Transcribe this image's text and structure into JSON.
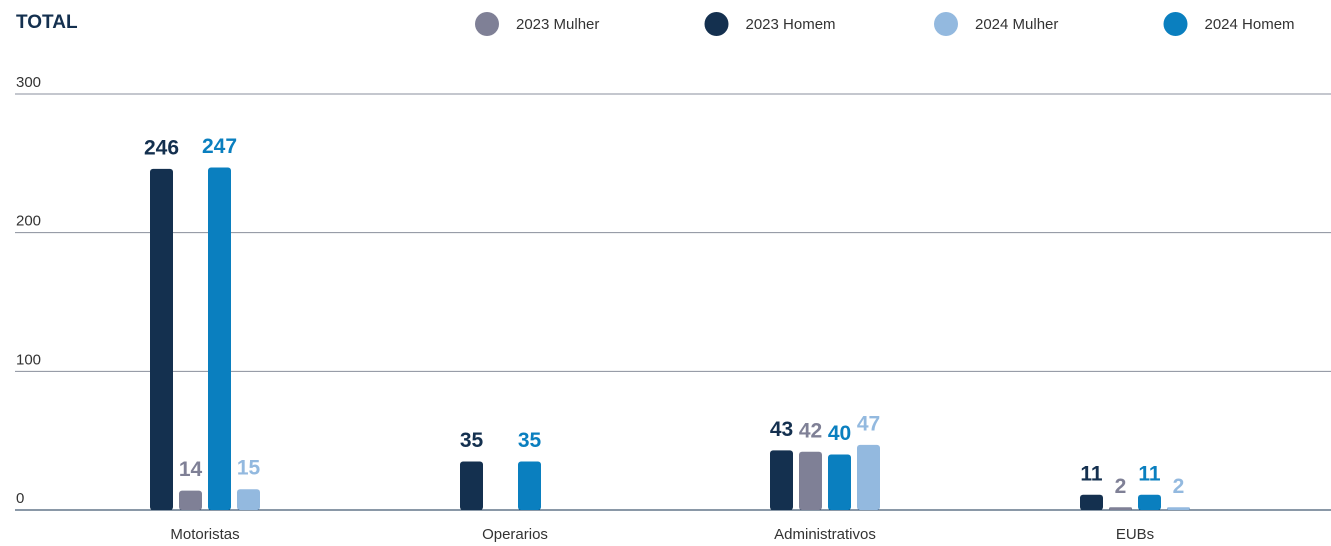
{
  "chart_data": {
    "type": "bar",
    "title": "TOTAL",
    "categories": [
      "Motoristas",
      "Operarios",
      "Administrativos",
      "EUBs"
    ],
    "series": [
      {
        "name": "2023 Homem",
        "color": "#14304f",
        "values": [
          246,
          35,
          43,
          11
        ]
      },
      {
        "name": "2023 Mulher",
        "color": "#7f8096",
        "values": [
          14,
          null,
          42,
          2
        ]
      },
      {
        "name": "2024 Homem",
        "color": "#0a7fbf",
        "values": [
          247,
          35,
          40,
          11
        ]
      },
      {
        "name": "2024 Mulher",
        "color": "#93b9df",
        "values": [
          15,
          null,
          47,
          2
        ]
      }
    ],
    "ylim": [
      0,
      300
    ],
    "yticks": [
      0,
      100,
      200,
      300
    ],
    "grid": true
  }
}
